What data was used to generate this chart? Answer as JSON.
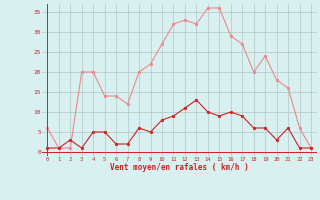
{
  "x": [
    0,
    1,
    2,
    3,
    4,
    5,
    6,
    7,
    8,
    9,
    10,
    11,
    12,
    13,
    14,
    15,
    16,
    17,
    18,
    19,
    20,
    21,
    22,
    23
  ],
  "wind_avg": [
    1,
    1,
    3,
    1,
    5,
    5,
    2,
    2,
    6,
    5,
    8,
    9,
    11,
    13,
    10,
    9,
    10,
    9,
    6,
    6,
    3,
    6,
    1,
    1
  ],
  "wind_gust": [
    6,
    1,
    1,
    20,
    20,
    14,
    14,
    12,
    20,
    22,
    27,
    32,
    33,
    32,
    36,
    36,
    29,
    27,
    20,
    24,
    18,
    16,
    6,
    1
  ],
  "bg_color": "#d8f0f0",
  "grid_color": "#b8cccc",
  "line_avg_color": "#cc2222",
  "line_gust_color": "#ee8888",
  "xlabel": "Vent moyen/en rafales ( km/h )",
  "xlabel_color": "#cc2222",
  "yticks": [
    0,
    5,
    10,
    15,
    20,
    25,
    30,
    35
  ],
  "ylim": [
    -1,
    37
  ],
  "xlim": [
    -0.5,
    23.5
  ]
}
